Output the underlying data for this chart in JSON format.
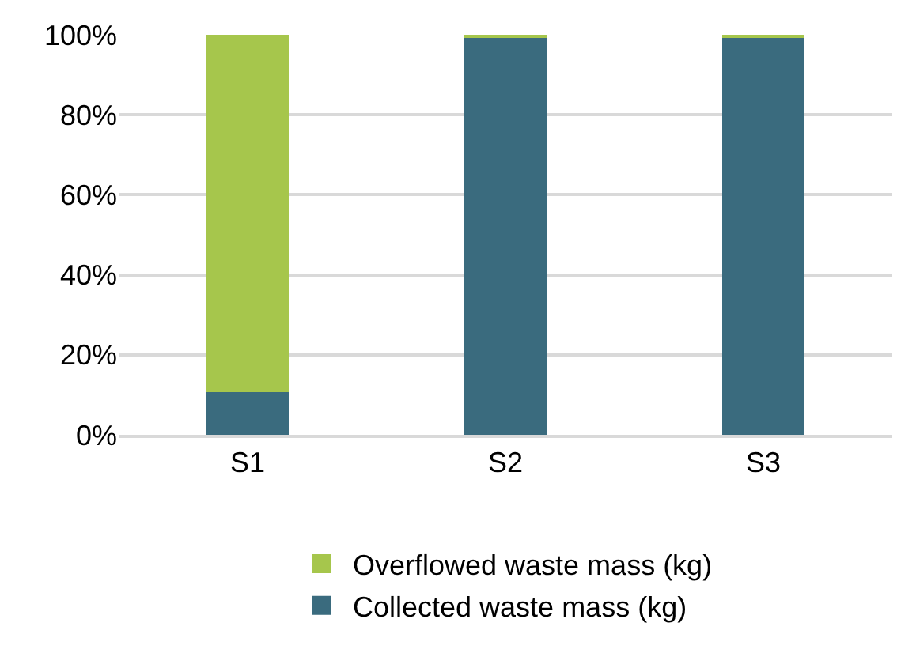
{
  "chart_data": {
    "type": "bar",
    "stacked": true,
    "categories": [
      "S1",
      "S2",
      "S3"
    ],
    "series": [
      {
        "name": "Collected waste mass (kg)",
        "color": "#3a6b7e",
        "values": [
          10.7,
          99.5,
          99.5
        ]
      },
      {
        "name": "Overflowed waste mass (kg)",
        "color": "#a6c64c",
        "values": [
          89.3,
          0.5,
          0.5
        ]
      }
    ],
    "ylim": [
      0,
      100
    ],
    "yticks": [
      {
        "value": 0,
        "label": "0%"
      },
      {
        "value": 20,
        "label": "20%"
      },
      {
        "value": 40,
        "label": "40%"
      },
      {
        "value": 60,
        "label": "60%"
      },
      {
        "value": 80,
        "label": "80%"
      },
      {
        "value": 100,
        "label": "100%"
      }
    ],
    "grid": "y",
    "legend": "bottom"
  }
}
